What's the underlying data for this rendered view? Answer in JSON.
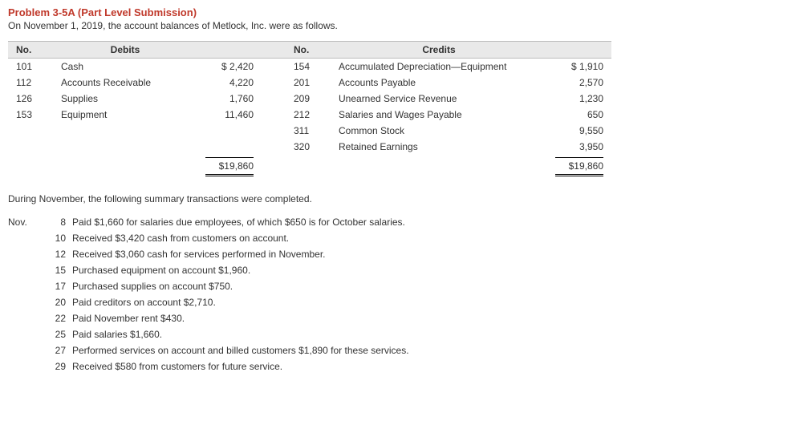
{
  "title": "Problem 3-5A (Part Level Submission)",
  "intro": "On November 1, 2019, the account balances of Metlock, Inc. were as follows.",
  "balances": {
    "headers": {
      "no": "No.",
      "debits": "Debits",
      "credits": "Credits"
    },
    "debits": [
      {
        "no": "101",
        "name": "Cash",
        "amt": "$ 2,420"
      },
      {
        "no": "112",
        "name": "Accounts Receivable",
        "amt": "4,220"
      },
      {
        "no": "126",
        "name": "Supplies",
        "amt": "1,760"
      },
      {
        "no": "153",
        "name": "Equipment",
        "amt": "11,460"
      }
    ],
    "credits": [
      {
        "no": "154",
        "name": "Accumulated Depreciation—Equipment",
        "amt": "$ 1,910"
      },
      {
        "no": "201",
        "name": "Accounts Payable",
        "amt": "2,570"
      },
      {
        "no": "209",
        "name": "Unearned Service Revenue",
        "amt": "1,230"
      },
      {
        "no": "212",
        "name": "Salaries and Wages Payable",
        "amt": "650"
      },
      {
        "no": "311",
        "name": "Common Stock",
        "amt": "9,550"
      },
      {
        "no": "320",
        "name": "Retained Earnings",
        "amt": "3,950"
      }
    ],
    "debit_total": "$19,860",
    "credit_total": "$19,860"
  },
  "during": "During November, the following summary transactions were completed.",
  "txn_prefix": "Nov.",
  "transactions": [
    {
      "day": "8",
      "desc": "Paid $1,660 for salaries due employees, of which $650 is for October salaries."
    },
    {
      "day": "10",
      "desc": "Received $3,420 cash from customers on account."
    },
    {
      "day": "12",
      "desc": "Received $3,060 cash for services performed in November."
    },
    {
      "day": "15",
      "desc": "Purchased equipment on account $1,960."
    },
    {
      "day": "17",
      "desc": "Purchased supplies on account $750."
    },
    {
      "day": "20",
      "desc": "Paid creditors on account $2,710."
    },
    {
      "day": "22",
      "desc": "Paid November rent $430."
    },
    {
      "day": "25",
      "desc": "Paid salaries $1,660."
    },
    {
      "day": "27",
      "desc": "Performed services on account and billed customers $1,890 for these services."
    },
    {
      "day": "29",
      "desc": "Received $580 from customers for future service."
    }
  ],
  "colors": {
    "title": "#c0392b",
    "header_bg": "#e9e9e9",
    "border": "#bbbbbb",
    "text": "#333333"
  }
}
